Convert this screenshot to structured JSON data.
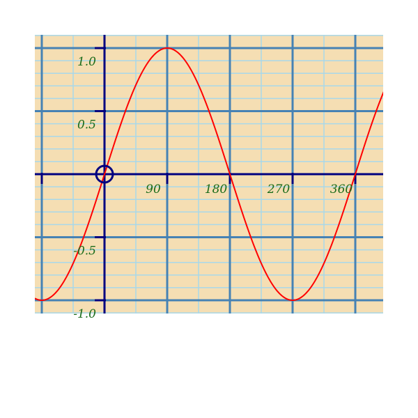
{
  "colors": {
    "background": "#f5deb3",
    "minor_grid": "#a8d8ea",
    "major_grid": "#4682b4",
    "axis": "#000080",
    "curve": "#ff0000",
    "tick_label": "#1a6b1a"
  },
  "chart_data": {
    "type": "line",
    "function": "y = sin(x°)",
    "xlabel": "",
    "ylabel": "",
    "title": "",
    "x_ticks": [
      "90",
      "180",
      "270",
      "360"
    ],
    "x_tick_values": [
      90,
      180,
      270,
      360
    ],
    "y_ticks": [
      "1.0",
      "0.5",
      "-0.5",
      "-1.0"
    ],
    "y_tick_values": [
      1.0,
      0.5,
      -0.5,
      -1.0
    ],
    "xlim": [
      -90,
      400
    ],
    "ylim": [
      -1.1,
      1.1
    ],
    "major_grid_x": 90,
    "major_grid_y": 0.5,
    "minor_grid_x": 45,
    "minor_grid_y": 0.1,
    "grid": true,
    "origin_marker": "circle",
    "series": [
      {
        "x": [
          -90,
          -45,
          0,
          45,
          90,
          135,
          180,
          225,
          270,
          315,
          360,
          400
        ],
        "values": [
          -1,
          -0.707,
          0,
          0.707,
          1,
          0.707,
          0,
          -0.707,
          -1,
          -0.707,
          0,
          0.643
        ]
      }
    ]
  }
}
